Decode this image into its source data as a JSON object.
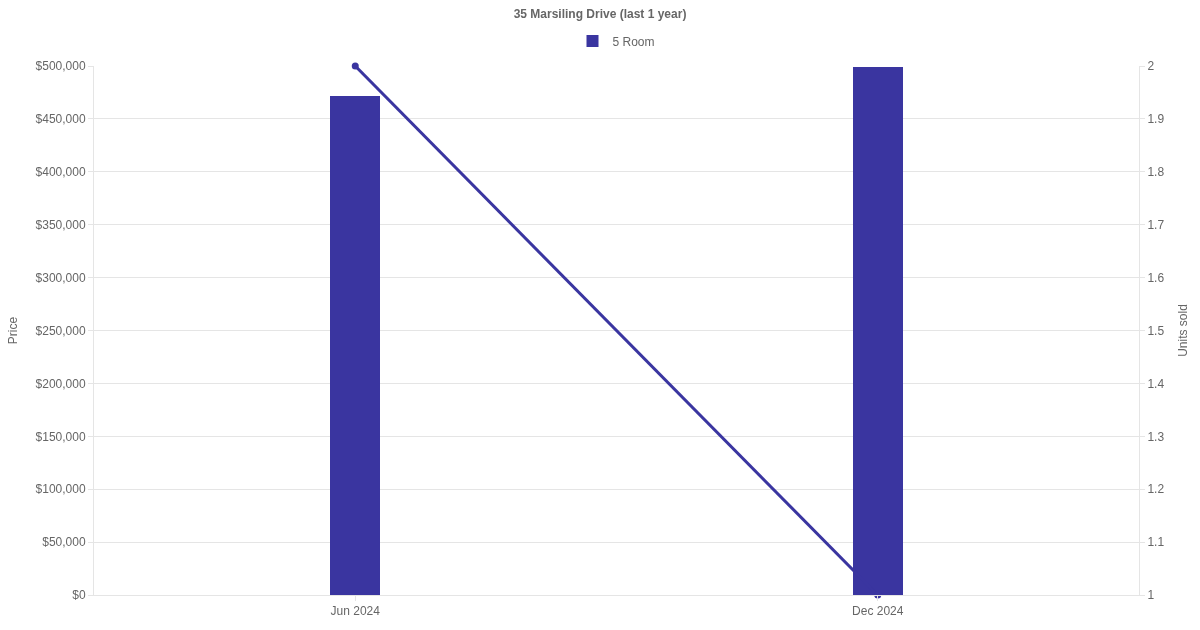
{
  "chart_data": {
    "type": "bar",
    "title": "35 Marsiling Drive (last 1 year)",
    "ylabel": "Price",
    "y2label": "Units sold",
    "categories": [
      "Jun 2024",
      "Dec 2024"
    ],
    "series": [
      {
        "name": "5 Room",
        "color": "#3a35a0",
        "values": [
          472000,
          499000
        ]
      },
      {
        "type": "line",
        "axis": "y2",
        "color": "#3a35a0",
        "values": [
          2,
          1
        ],
        "marker": "circle",
        "line_style": "solid"
      }
    ],
    "ylim": [
      0,
      500000
    ],
    "yticks": [
      {
        "value": 0,
        "label": "$0"
      },
      {
        "value": 50000,
        "label": "$50,000"
      },
      {
        "value": 100000,
        "label": "$100,000"
      },
      {
        "value": 150000,
        "label": "$150,000"
      },
      {
        "value": 200000,
        "label": "$200,000"
      },
      {
        "value": 250000,
        "label": "$250,000"
      },
      {
        "value": 300000,
        "label": "$300,000"
      },
      {
        "value": 350000,
        "label": "$350,000"
      },
      {
        "value": 400000,
        "label": "$400,000"
      },
      {
        "value": 450000,
        "label": "$450,000"
      },
      {
        "value": 500000,
        "label": "$500,000"
      }
    ],
    "y2lim": [
      1,
      2
    ],
    "y2ticks": [
      1,
      1.1,
      1.2,
      1.3,
      1.4,
      1.5,
      1.6,
      1.7,
      1.8,
      1.9,
      2
    ],
    "grid": "y",
    "legend": "top"
  }
}
